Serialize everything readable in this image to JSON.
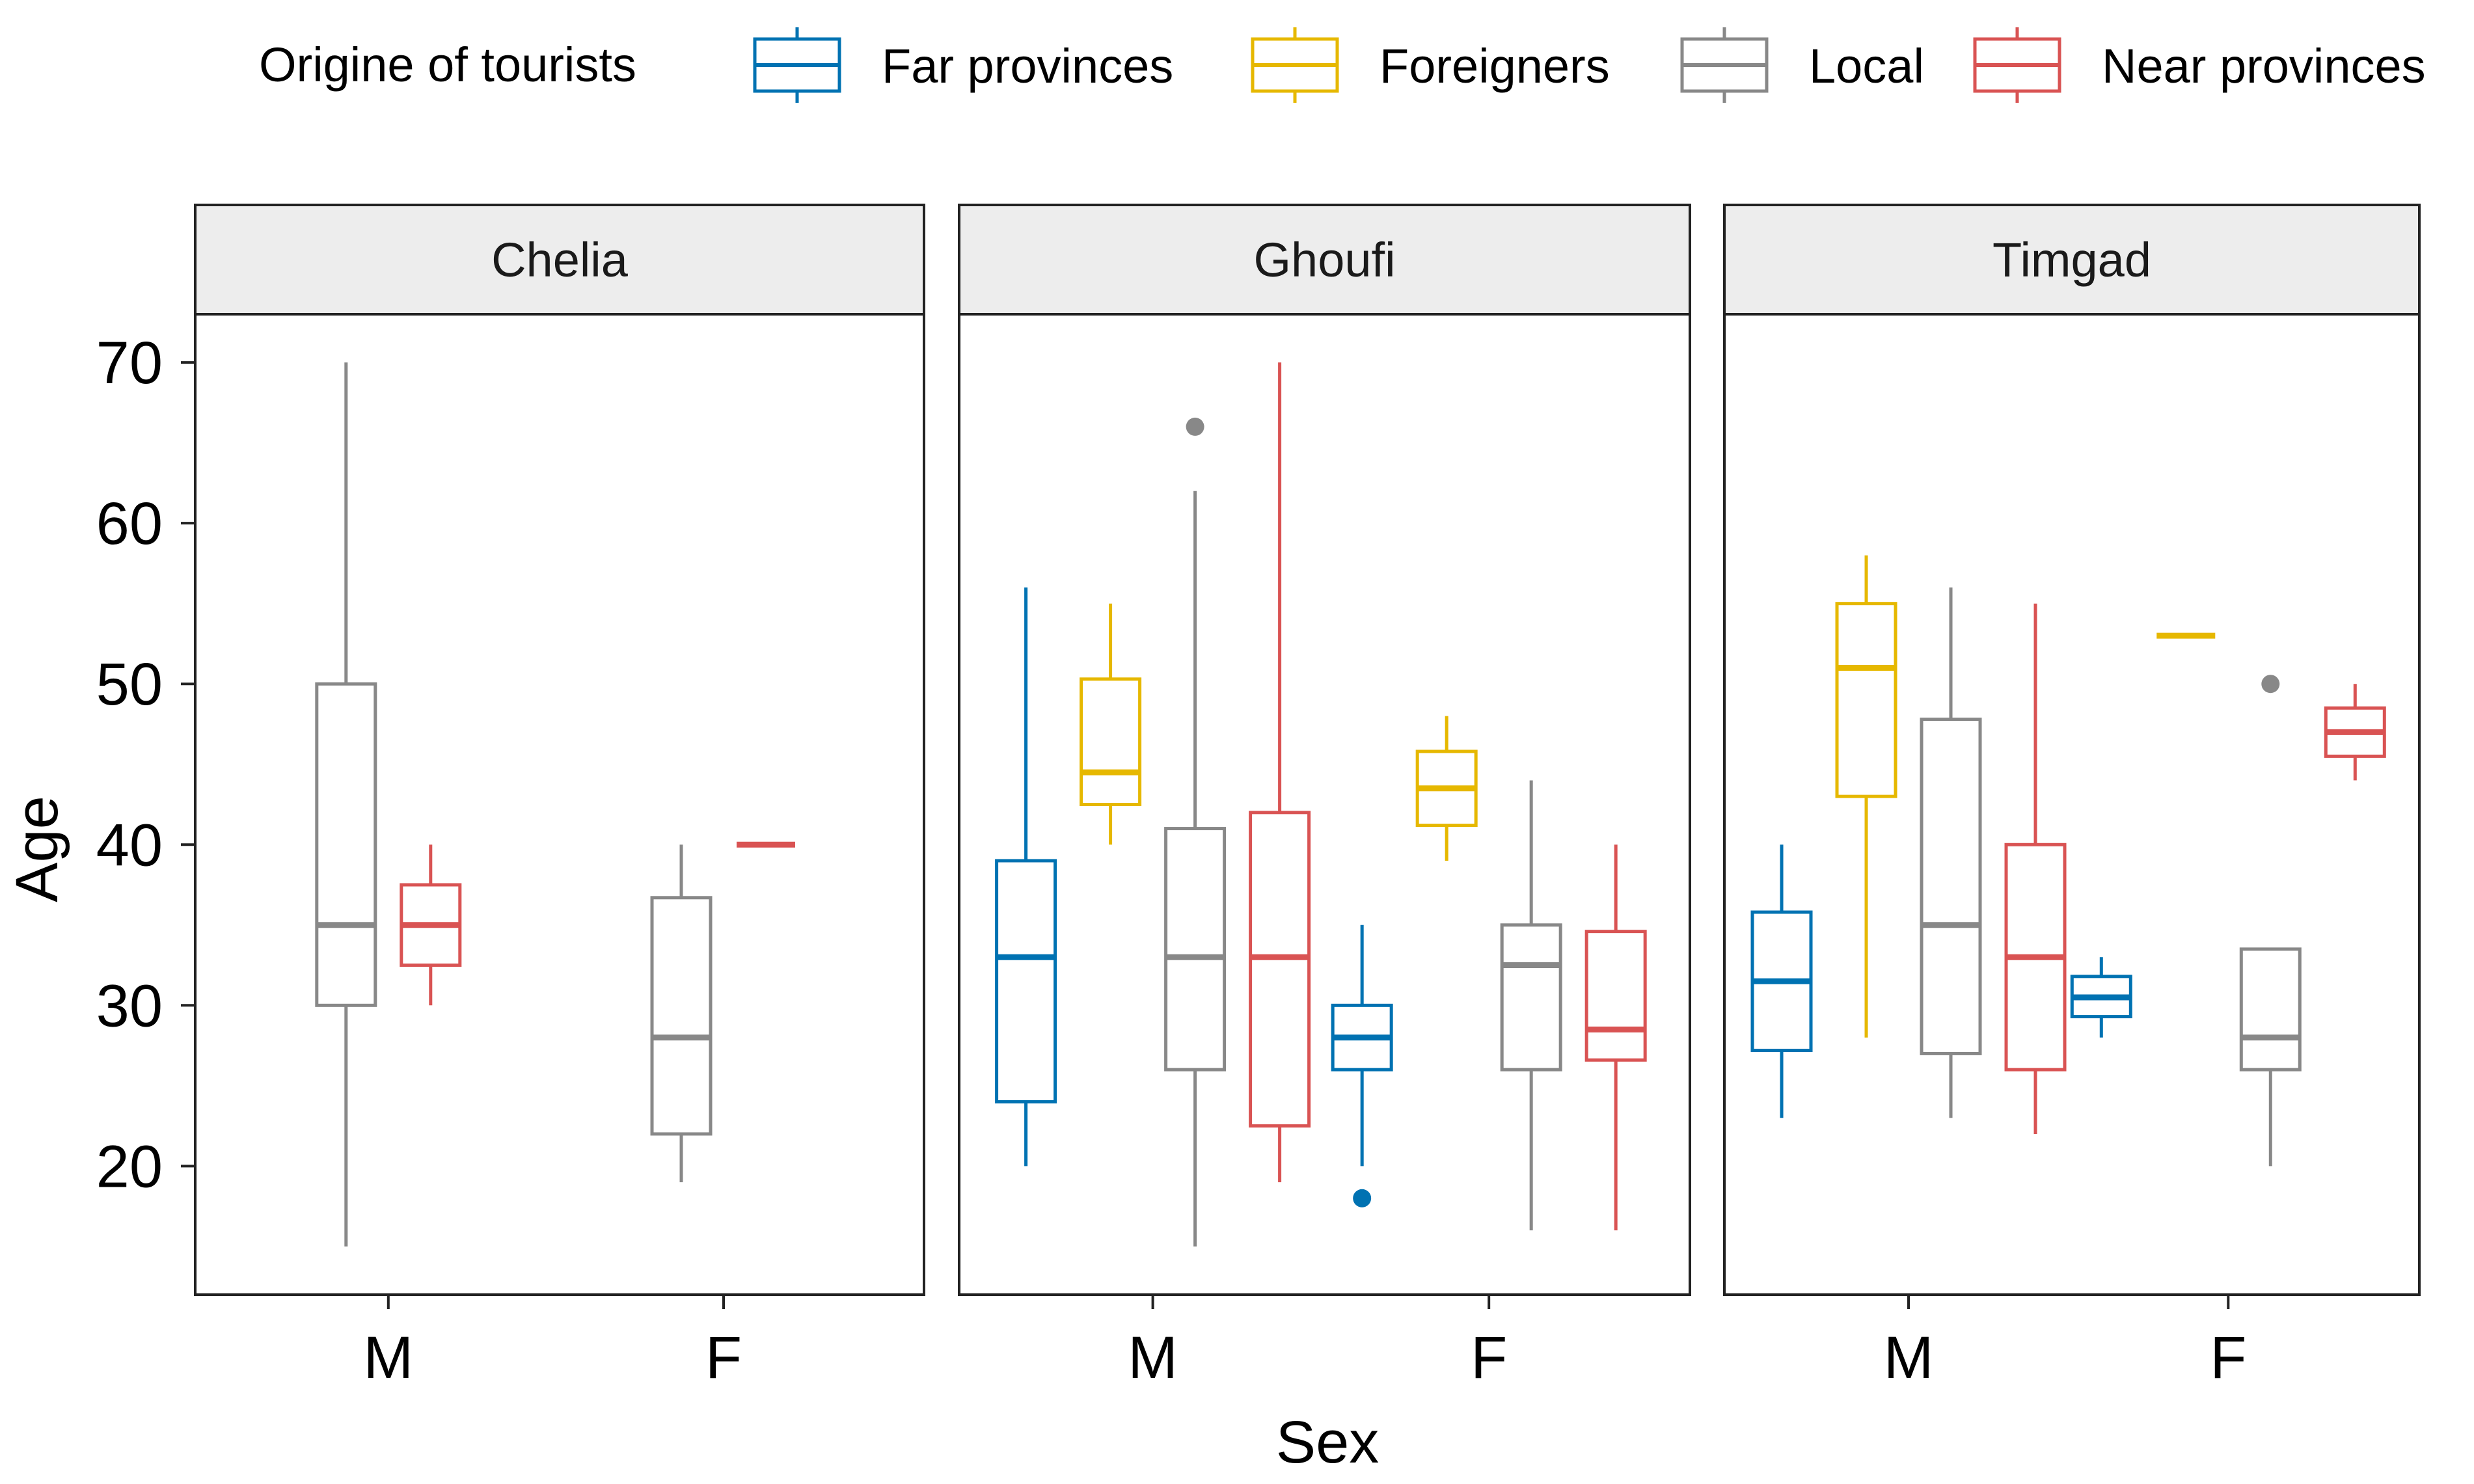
{
  "chart_data": {
    "type": "boxplot",
    "x_label": "Sex",
    "y_label": "Age",
    "y_ticks": [
      20,
      30,
      40,
      50,
      60,
      70
    ],
    "y_range": [
      12,
      73
    ],
    "x_categories": [
      "M",
      "F"
    ],
    "legend": {
      "title": "Origine of tourists",
      "position": "top",
      "items": [
        {
          "name": "Far provinces",
          "color": "#0072B2"
        },
        {
          "name": "Foreigners",
          "color": "#E6B800"
        },
        {
          "name": "Local",
          "color": "#888888"
        },
        {
          "name": "Near provinces",
          "color": "#D95353"
        }
      ]
    },
    "panels": [
      {
        "title": "Chelia",
        "boxes": [
          {
            "sex": "M",
            "group": "Local",
            "min": 15,
            "q1": 30,
            "median": 35,
            "q3": 50,
            "max": 70,
            "outliers": []
          },
          {
            "sex": "M",
            "group": "Near provinces",
            "min": 30,
            "q1": 32.5,
            "median": 35,
            "q3": 37.5,
            "max": 40,
            "outliers": []
          },
          {
            "sex": "F",
            "group": "Local",
            "min": 19,
            "q1": 22,
            "median": 28,
            "q3": 36.7,
            "max": 40,
            "outliers": []
          },
          {
            "sex": "F",
            "group": "Near provinces",
            "min": 40,
            "q1": 40,
            "median": 40,
            "q3": 40,
            "max": 40,
            "outliers": []
          }
        ]
      },
      {
        "title": "Ghoufi",
        "boxes": [
          {
            "sex": "M",
            "group": "Far provinces",
            "min": 20,
            "q1": 24,
            "median": 33,
            "q3": 39,
            "max": 56,
            "outliers": []
          },
          {
            "sex": "M",
            "group": "Foreigners",
            "min": 40,
            "q1": 42.5,
            "median": 44.5,
            "q3": 50.3,
            "max": 55,
            "outliers": []
          },
          {
            "sex": "M",
            "group": "Local",
            "min": 15,
            "q1": 26,
            "median": 33,
            "q3": 41,
            "max": 62,
            "outliers": [
              66
            ]
          },
          {
            "sex": "M",
            "group": "Near provinces",
            "min": 19,
            "q1": 22.5,
            "median": 33,
            "q3": 42,
            "max": 70,
            "outliers": []
          },
          {
            "sex": "F",
            "group": "Far provinces",
            "min": 20,
            "q1": 26,
            "median": 28,
            "q3": 30,
            "max": 35,
            "outliers": [
              18
            ]
          },
          {
            "sex": "F",
            "group": "Foreigners",
            "min": 39,
            "q1": 41.2,
            "median": 43.5,
            "q3": 45.8,
            "max": 48,
            "outliers": []
          },
          {
            "sex": "F",
            "group": "Local",
            "min": 16,
            "q1": 26,
            "median": 32.5,
            "q3": 35,
            "max": 44,
            "outliers": []
          },
          {
            "sex": "F",
            "group": "Near provinces",
            "min": 16,
            "q1": 26.6,
            "median": 28.5,
            "q3": 34.6,
            "max": 40,
            "outliers": []
          }
        ]
      },
      {
        "title": "Timgad",
        "boxes": [
          {
            "sex": "M",
            "group": "Far provinces",
            "min": 23,
            "q1": 27.2,
            "median": 31.5,
            "q3": 35.8,
            "max": 40,
            "outliers": []
          },
          {
            "sex": "M",
            "group": "Foreigners",
            "min": 28,
            "q1": 43,
            "median": 51,
            "q3": 55,
            "max": 58,
            "outliers": []
          },
          {
            "sex": "M",
            "group": "Local",
            "min": 23,
            "q1": 27,
            "median": 35,
            "q3": 47.8,
            "max": 56,
            "outliers": []
          },
          {
            "sex": "M",
            "group": "Near provinces",
            "min": 22,
            "q1": 26,
            "median": 33,
            "q3": 40,
            "max": 55,
            "outliers": []
          },
          {
            "sex": "F",
            "group": "Far provinces",
            "min": 28,
            "q1": 29.3,
            "median": 30.5,
            "q3": 31.8,
            "max": 33,
            "outliers": []
          },
          {
            "sex": "F",
            "group": "Foreigners",
            "min": 53,
            "q1": 53,
            "median": 53,
            "q3": 53,
            "max": 53,
            "outliers": []
          },
          {
            "sex": "F",
            "group": "Local",
            "min": 20,
            "q1": 26,
            "median": 28,
            "q3": 33.5,
            "max": 33.5,
            "outliers": [
              50
            ]
          },
          {
            "sex": "F",
            "group": "Near provinces",
            "min": 44,
            "q1": 45.5,
            "median": 47,
            "q3": 48.5,
            "max": 50,
            "outliers": []
          }
        ]
      }
    ]
  }
}
